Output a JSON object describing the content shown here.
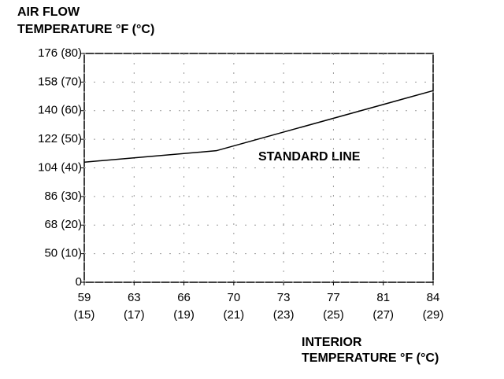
{
  "chart_data": {
    "type": "line",
    "y_label": [
      "AIR FLOW",
      "TEMPERATURE °F (°C)"
    ],
    "x_label": [
      "INTERIOR",
      "TEMPERATURE °F (°C)"
    ],
    "annotation": "STANDARD LINE",
    "x": [
      15,
      20.3,
      29
    ],
    "series": [
      {
        "name": "STANDARD LINE",
        "color": "#000000",
        "values": [
          42,
          46,
          67
        ]
      }
    ],
    "xlim": [
      15,
      29
    ],
    "xticks": [
      {
        "value": 15,
        "label": "59 (15)"
      },
      {
        "value": 17,
        "label": "63 (17)"
      },
      {
        "value": 19,
        "label": "66 (19)"
      },
      {
        "value": 21,
        "label": "70 (21)"
      },
      {
        "value": 23,
        "label": "73 (23)"
      },
      {
        "value": 25,
        "label": "77 (25)"
      },
      {
        "value": 27,
        "label": "81 (27)"
      },
      {
        "value": 29,
        "label": "84 (29)"
      }
    ],
    "ylim": [
      0,
      80
    ],
    "yticks": [
      0,
      {
        "value": 10,
        "label": "50 (10)"
      },
      {
        "value": 20,
        "label": "68 (20)"
      },
      {
        "value": 30,
        "label": "86 (30)"
      },
      {
        "value": 40,
        "label": "104 (40)"
      },
      {
        "value": 50,
        "label": "122 (50)"
      },
      {
        "value": 60,
        "label": "140 (60)"
      },
      {
        "value": 70,
        "label": "158 (70)"
      },
      {
        "value": 80,
        "label": "176 (80)"
      }
    ],
    "grid": true
  }
}
